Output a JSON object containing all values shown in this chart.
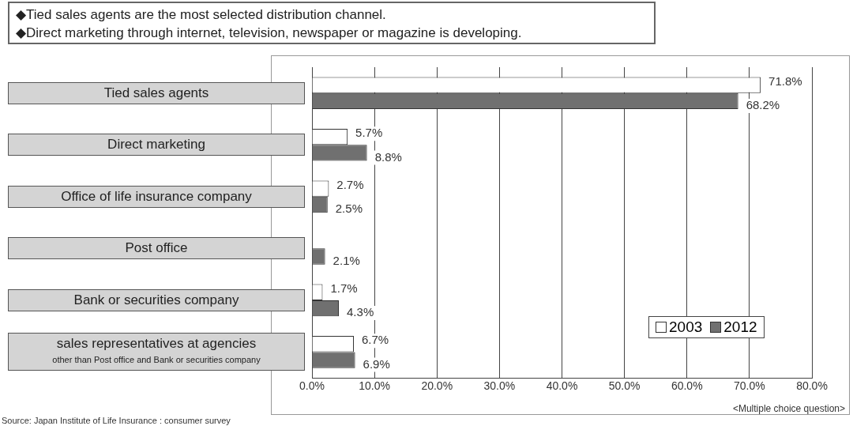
{
  "chart_data": {
    "type": "bar",
    "orientation": "horizontal",
    "title": "◆Tied sales agents are the most selected distribution channel.",
    "subtitle": "◆Direct marketing through internet, television, newspaper or magazine is developing.",
    "categories": [
      "Tied sales agents",
      "Direct marketing",
      "Office of life insurance company",
      "Post office",
      "Bank or securities company",
      "sales representatives at agencies\nother than Post office and Bank or securities company"
    ],
    "series": [
      {
        "name": "2003",
        "color": "#ffffff",
        "values": [
          71.8,
          5.7,
          2.7,
          null,
          1.7,
          6.7
        ],
        "value_labels": [
          "71.8%",
          "5.7%",
          "2.7%",
          null,
          "1.7%",
          "6.7%"
        ]
      },
      {
        "name": "2012",
        "color": "#707070",
        "values": [
          68.2,
          8.8,
          2.5,
          2.1,
          4.3,
          6.9
        ],
        "value_labels": [
          "68.2%",
          "8.8%",
          "2.5%",
          "2.1%",
          "4.3%",
          "6.9%"
        ]
      }
    ],
    "xlim": [
      0,
      80
    ],
    "xticks": [
      {
        "value": 0,
        "label": "0.0%"
      },
      {
        "value": 10,
        "label": "10.0%"
      },
      {
        "value": 20,
        "label": "20.0%"
      },
      {
        "value": 30,
        "label": "30.0%"
      },
      {
        "value": 40,
        "label": "40.0%"
      },
      {
        "value": 50,
        "label": "50.0%"
      },
      {
        "value": 60,
        "label": "60.0%"
      },
      {
        "value": 70,
        "label": "70.0%"
      },
      {
        "value": 80,
        "label": "80.0%"
      }
    ],
    "grid": "x",
    "legend": "bottom right",
    "annotations": [
      "<Multiple choice question>",
      "Source: Japan Institute of Life Insurance : consumer survey"
    ]
  }
}
